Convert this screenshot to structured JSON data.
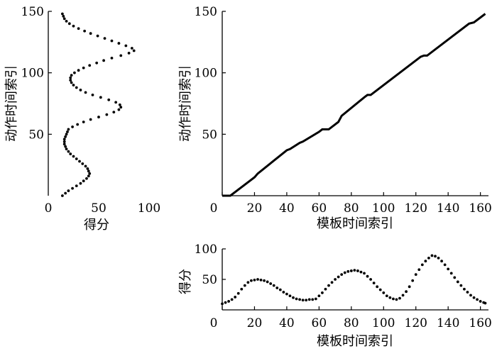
{
  "chart_data": [
    {
      "id": "left",
      "type": "scatter",
      "xlabel": "得分",
      "ylabel": "动作时间索引",
      "xlim": [
        0,
        100
      ],
      "ylim": [
        0,
        150
      ],
      "xticks": [
        0,
        50,
        100
      ],
      "yticks": [
        50,
        100,
        150
      ],
      "grid": false,
      "description_of_series": "score vs action time index",
      "points": [
        [
          14,
          0
        ],
        [
          17,
          2
        ],
        [
          20,
          4
        ],
        [
          24,
          6
        ],
        [
          28,
          8
        ],
        [
          32,
          10
        ],
        [
          35,
          12
        ],
        [
          38,
          14
        ],
        [
          40,
          16
        ],
        [
          41,
          18
        ],
        [
          40,
          20
        ],
        [
          39,
          22
        ],
        [
          37,
          24
        ],
        [
          34,
          26
        ],
        [
          31,
          28
        ],
        [
          28,
          30
        ],
        [
          25,
          32
        ],
        [
          22,
          34
        ],
        [
          20,
          36
        ],
        [
          18,
          38
        ],
        [
          17,
          40
        ],
        [
          16,
          42
        ],
        [
          16,
          44
        ],
        [
          16,
          46
        ],
        [
          17,
          48
        ],
        [
          18,
          50
        ],
        [
          19,
          52
        ],
        [
          20,
          54
        ],
        [
          24,
          56
        ],
        [
          29,
          58
        ],
        [
          35,
          60
        ],
        [
          42,
          62
        ],
        [
          50,
          64
        ],
        [
          58,
          66
        ],
        [
          65,
          68
        ],
        [
          70,
          70
        ],
        [
          72,
          72
        ],
        [
          71,
          74
        ],
        [
          67,
          76
        ],
        [
          60,
          78
        ],
        [
          52,
          80
        ],
        [
          44,
          82
        ],
        [
          37,
          84
        ],
        [
          32,
          86
        ],
        [
          28,
          88
        ],
        [
          25,
          90
        ],
        [
          23,
          92
        ],
        [
          22,
          94
        ],
        [
          22,
          96
        ],
        [
          23,
          98
        ],
        [
          26,
          100
        ],
        [
          30,
          102
        ],
        [
          35,
          104
        ],
        [
          41,
          106
        ],
        [
          48,
          108
        ],
        [
          55,
          110
        ],
        [
          63,
          112
        ],
        [
          72,
          114
        ],
        [
          80,
          116
        ],
        [
          85,
          118
        ],
        [
          83,
          120
        ],
        [
          77,
          122
        ],
        [
          70,
          124
        ],
        [
          63,
          126
        ],
        [
          56,
          128
        ],
        [
          49,
          130
        ],
        [
          42,
          132
        ],
        [
          36,
          134
        ],
        [
          30,
          136
        ],
        [
          25,
          138
        ],
        [
          21,
          140
        ],
        [
          18,
          142
        ],
        [
          16,
          144
        ],
        [
          15,
          146
        ],
        [
          14,
          148
        ]
      ]
    },
    {
      "id": "main",
      "type": "line",
      "xlabel": "模板时间索引",
      "ylabel": "动作时间索引",
      "xlim": [
        0,
        165
      ],
      "ylim": [
        0,
        150
      ],
      "xticks": [
        0,
        20,
        40,
        60,
        80,
        100,
        120,
        140,
        160
      ],
      "yticks": [
        50,
        100,
        150
      ],
      "grid": false,
      "points": [
        [
          0,
          0
        ],
        [
          5,
          0
        ],
        [
          20,
          15
        ],
        [
          22,
          18
        ],
        [
          40,
          37
        ],
        [
          42,
          38
        ],
        [
          48,
          43
        ],
        [
          50,
          44
        ],
        [
          60,
          52
        ],
        [
          62,
          54
        ],
        [
          66,
          54
        ],
        [
          72,
          60
        ],
        [
          74,
          65
        ],
        [
          88,
          80
        ],
        [
          90,
          82
        ],
        [
          92,
          82
        ],
        [
          123,
          113
        ],
        [
          125,
          114
        ],
        [
          127,
          114
        ],
        [
          153,
          140
        ],
        [
          156,
          141
        ],
        [
          163,
          148
        ]
      ]
    },
    {
      "id": "bottom",
      "type": "scatter",
      "xlabel": "模板时间索引",
      "ylabel": "得分",
      "xlim": [
        0,
        165
      ],
      "ylim": [
        0,
        100
      ],
      "xticks": [
        0,
        20,
        40,
        60,
        80,
        100,
        120,
        140,
        160
      ],
      "yticks": [
        50,
        100
      ],
      "grid": false,
      "points": [
        [
          0,
          10
        ],
        [
          2,
          12
        ],
        [
          4,
          14
        ],
        [
          6,
          17
        ],
        [
          8,
          21
        ],
        [
          10,
          27
        ],
        [
          12,
          34
        ],
        [
          14,
          40
        ],
        [
          16,
          45
        ],
        [
          18,
          48
        ],
        [
          20,
          49
        ],
        [
          22,
          50
        ],
        [
          24,
          49
        ],
        [
          26,
          48
        ],
        [
          28,
          46
        ],
        [
          30,
          43
        ],
        [
          32,
          40
        ],
        [
          34,
          36
        ],
        [
          36,
          33
        ],
        [
          38,
          29
        ],
        [
          40,
          26
        ],
        [
          42,
          23
        ],
        [
          44,
          20
        ],
        [
          46,
          18
        ],
        [
          48,
          17
        ],
        [
          50,
          16
        ],
        [
          52,
          16
        ],
        [
          54,
          17
        ],
        [
          56,
          17
        ],
        [
          58,
          18
        ],
        [
          60,
          23
        ],
        [
          62,
          28
        ],
        [
          64,
          34
        ],
        [
          66,
          40
        ],
        [
          68,
          45
        ],
        [
          70,
          50
        ],
        [
          72,
          54
        ],
        [
          74,
          58
        ],
        [
          76,
          61
        ],
        [
          78,
          63
        ],
        [
          80,
          64
        ],
        [
          82,
          65
        ],
        [
          84,
          64
        ],
        [
          86,
          62
        ],
        [
          88,
          60
        ],
        [
          90,
          55
        ],
        [
          92,
          50
        ],
        [
          94,
          44
        ],
        [
          96,
          38
        ],
        [
          98,
          33
        ],
        [
          100,
          28
        ],
        [
          102,
          23
        ],
        [
          104,
          20
        ],
        [
          106,
          18
        ],
        [
          108,
          17
        ],
        [
          110,
          19
        ],
        [
          112,
          24
        ],
        [
          114,
          30
        ],
        [
          116,
          38
        ],
        [
          118,
          48
        ],
        [
          120,
          58
        ],
        [
          122,
          66
        ],
        [
          124,
          74
        ],
        [
          126,
          80
        ],
        [
          128,
          85
        ],
        [
          130,
          89
        ],
        [
          132,
          88
        ],
        [
          134,
          85
        ],
        [
          136,
          80
        ],
        [
          138,
          74
        ],
        [
          140,
          67
        ],
        [
          142,
          60
        ],
        [
          144,
          53
        ],
        [
          146,
          46
        ],
        [
          148,
          40
        ],
        [
          150,
          34
        ],
        [
          152,
          29
        ],
        [
          154,
          24
        ],
        [
          156,
          20
        ],
        [
          158,
          17
        ],
        [
          160,
          14
        ],
        [
          162,
          12
        ],
        [
          163,
          11
        ]
      ]
    }
  ]
}
